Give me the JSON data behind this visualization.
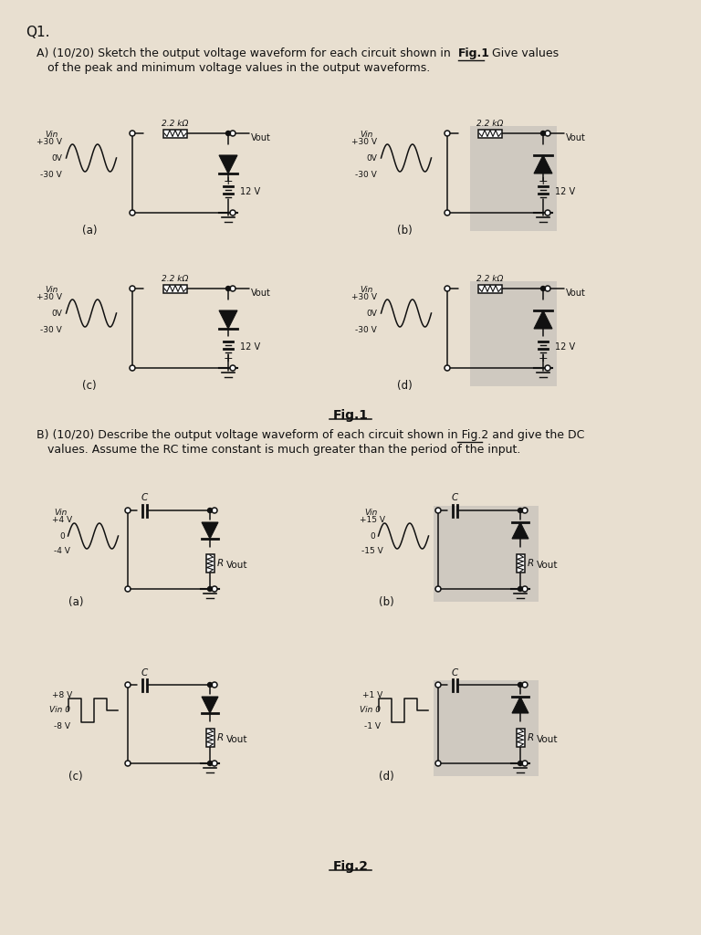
{
  "bg_color": "#e8dfd0",
  "text_color": "#1a1a1a",
  "title": "Q1.",
  "fig1_label": "Fig.1",
  "fig2_label": "Fig.2",
  "part_a_line1": "A) (10/20) Sketch the output voltage waveform for each circuit shown in Fig.1. Give values",
  "part_a_line2": "   of the peak and minimum voltage values in the output waveforms.",
  "part_b_line1": "B) (10/20) Describe the output voltage waveform of each circuit shown in Fig.2 and give the DC",
  "part_b_line2": "   values. Assume the RC time constant is much greater than the period of the input.",
  "fig1_sub_labels": [
    "(a)",
    "(b)",
    "(c)",
    "(d)"
  ],
  "fig2_sub_labels": [
    "(a)",
    "(b)",
    "(c)",
    "(d)"
  ]
}
